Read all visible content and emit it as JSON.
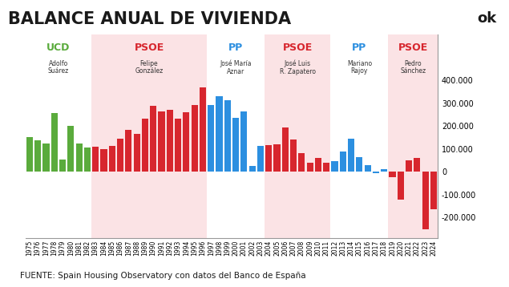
{
  "chart_data": {
    "type": "bar",
    "title": "BALANCE ANUAL DE VIVIENDA",
    "logo": "ok",
    "source": "FUENTE: Spain Housing Observatory con datos del Banco de España",
    "categories": [
      "1975",
      "1976",
      "1977",
      "1978",
      "1979",
      "1980",
      "1981",
      "1982",
      "1983",
      "1984",
      "1985",
      "1986",
      "1987",
      "1988",
      "1989",
      "1990",
      "1991",
      "1992",
      "1993",
      "1994",
      "1995",
      "1996",
      "1997",
      "1998",
      "1999",
      "2000",
      "2001",
      "2002",
      "2003",
      "2004",
      "2005",
      "2006",
      "2007",
      "2008",
      "2009",
      "2010",
      "2011",
      "2012",
      "2013",
      "2014",
      "2015",
      "2016",
      "2017",
      "2018",
      "2019",
      "2020",
      "2021",
      "2022",
      "2023",
      "2024"
    ],
    "values": [
      153000,
      138000,
      125000,
      255000,
      55000,
      200000,
      125000,
      107000,
      110000,
      100000,
      112000,
      145000,
      182000,
      166000,
      231000,
      288000,
      265000,
      270000,
      231000,
      260000,
      290000,
      369000,
      290000,
      330000,
      312000,
      234000,
      265000,
      26000,
      114000,
      117000,
      120000,
      192000,
      140000,
      80000,
      40000,
      60000,
      40000,
      45000,
      90000,
      145000,
      65000,
      30000,
      -5000,
      10000,
      -25000,
      -120000,
      50000,
      60000,
      -250000,
      -165000
    ],
    "colors": [
      "#5aab3c",
      "#5aab3c",
      "#5aab3c",
      "#5aab3c",
      "#5aab3c",
      "#5aab3c",
      "#5aab3c",
      "#5aab3c",
      "#d7262e",
      "#d7262e",
      "#d7262e",
      "#d7262e",
      "#d7262e",
      "#d7262e",
      "#d7262e",
      "#d7262e",
      "#d7262e",
      "#d7262e",
      "#d7262e",
      "#d7262e",
      "#d7262e",
      "#d7262e",
      "#2c8fe0",
      "#2c8fe0",
      "#2c8fe0",
      "#2c8fe0",
      "#2c8fe0",
      "#2c8fe0",
      "#2c8fe0",
      "#d7262e",
      "#d7262e",
      "#d7262e",
      "#d7262e",
      "#d7262e",
      "#d7262e",
      "#d7262e",
      "#d7262e",
      "#2c8fe0",
      "#2c8fe0",
      "#2c8fe0",
      "#2c8fe0",
      "#2c8fe0",
      "#2c8fe0",
      "#2c8fe0",
      "#d7262e",
      "#d7262e",
      "#d7262e",
      "#d7262e",
      "#d7262e",
      "#d7262e"
    ],
    "governments": [
      {
        "party": "UCD",
        "name": "Adolfo\nSuárez",
        "start": "1975",
        "end": "1982",
        "color": "#5aab3c",
        "background": "#ffffff"
      },
      {
        "party": "PSOE",
        "name": "Felipe\nGonzález",
        "start": "1983",
        "end": "1996",
        "color": "#d7262e",
        "background": "#fbe3e5"
      },
      {
        "party": "PP",
        "name": "José María\nAznar",
        "start": "1997",
        "end": "2003",
        "color": "#2c8fe0",
        "background": "#ffffff"
      },
      {
        "party": "PSOE",
        "name": "José Luis\nR. Zapatero",
        "start": "2004",
        "end": "2011",
        "color": "#d7262e",
        "background": "#fbe3e5"
      },
      {
        "party": "PP",
        "name": "Mariano\nRajoy",
        "start": "2012",
        "end": "2018",
        "color": "#2c8fe0",
        "background": "#ffffff"
      },
      {
        "party": "PSOE",
        "name": "Pedro\nSánchez",
        "start": "2019",
        "end": "2024",
        "color": "#d7262e",
        "background": "#fbe3e5"
      }
    ],
    "ylim": [
      -290000,
      600000
    ],
    "yticks": [
      {
        "value": -200000,
        "label": "-200.000"
      },
      {
        "value": -100000,
        "label": "-100.000"
      },
      0,
      {
        "value": 100000,
        "label": "100.000"
      },
      {
        "value": 200000,
        "label": "200.000"
      },
      {
        "value": 300000,
        "label": "300.000"
      },
      {
        "value": 400000,
        "label": "400.000"
      }
    ],
    "grid": false
  }
}
